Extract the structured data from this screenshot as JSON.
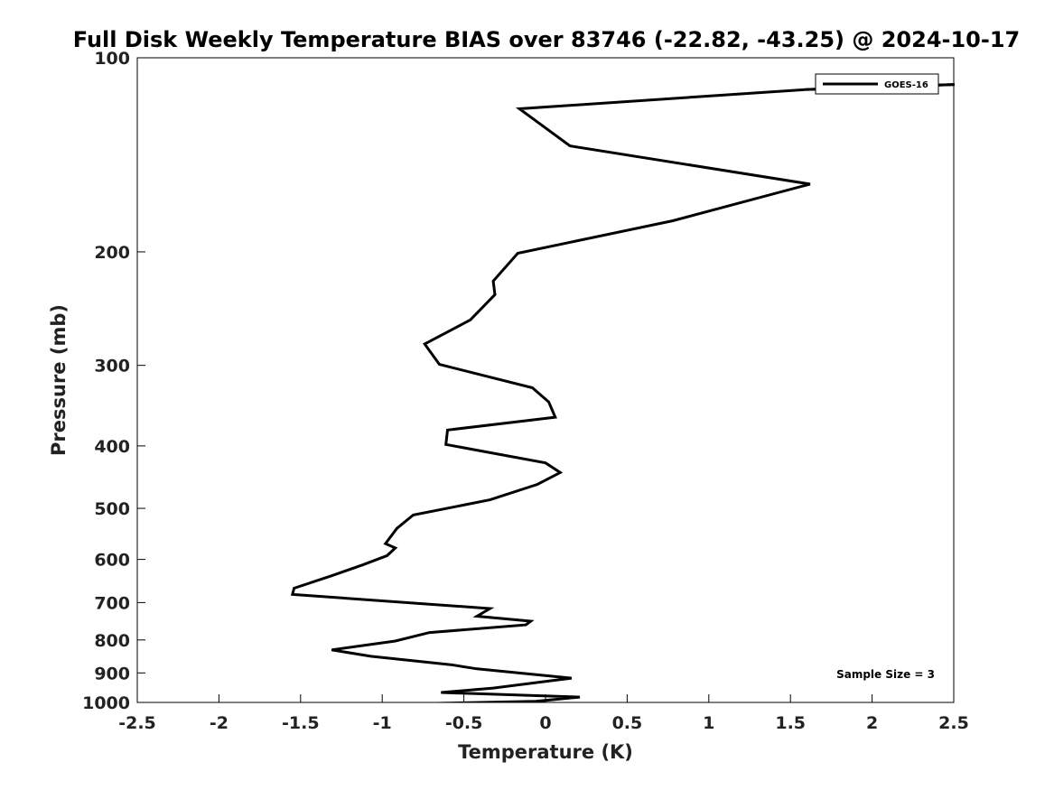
{
  "chart_data": {
    "type": "line",
    "title": "Full Disk Weekly Temperature BIAS over 83746 (-22.82, -43.25) @ 2024-10-17",
    "xlabel": "Temperature (K)",
    "ylabel": "Pressure (mb)",
    "xlim": [
      -2.5,
      2.5
    ],
    "ylim": [
      100,
      1000
    ],
    "y_scale": "log",
    "y_reversed": true,
    "x_ticks": [
      -2.5,
      -2,
      -1.5,
      -1,
      -0.5,
      0,
      0.5,
      1,
      1.5,
      2,
      2.5
    ],
    "x_tick_labels": [
      "-2.5",
      "-2",
      "-1.5",
      "-1",
      "-0.5",
      "0",
      "0.5",
      "1",
      "1.5",
      "2",
      "2.5"
    ],
    "y_ticks": [
      100,
      200,
      300,
      400,
      500,
      600,
      700,
      800,
      900,
      1000
    ],
    "y_tick_labels": [
      "100",
      "200",
      "300",
      "400",
      "500",
      "600",
      "700",
      "800",
      "900",
      "1000"
    ],
    "grid": false,
    "legend_position": "top-right",
    "series": [
      {
        "name": "GOES-16",
        "color": "#000000",
        "x": [
          2.5,
          1.6,
          -0.16,
          0.15,
          1.62,
          0.78,
          -0.17,
          -0.32,
          -0.31,
          -0.46,
          -0.74,
          -0.65,
          -0.08,
          0.02,
          0.06,
          -0.6,
          -0.61,
          0.0,
          0.09,
          -0.05,
          -0.34,
          -0.81,
          -0.91,
          -0.98,
          -0.92,
          -0.97,
          -1.12,
          -1.31,
          -1.54,
          -1.55,
          -0.34,
          -0.42,
          -0.09,
          -0.12,
          -0.71,
          -0.92,
          -1.31,
          -1.07,
          -0.58,
          -0.42,
          0.16,
          0.0,
          -0.32,
          -0.64,
          0.21,
          -0.06,
          -1.34
        ],
        "y": [
          110,
          112,
          120,
          137,
          157,
          179,
          201,
          222,
          233,
          255,
          278,
          299,
          325,
          342,
          361,
          378,
          398,
          425,
          440,
          459,
          485,
          512,
          537,
          567,
          576,
          592,
          612,
          636,
          665,
          680,
          715,
          735,
          748,
          758,
          779,
          803,
          829,
          848,
          874,
          887,
          917,
          928,
          950,
          965,
          981,
          996,
          1011
        ]
      }
    ],
    "annotations": [
      {
        "text": "Sample Size = 3",
        "position": "bottom-right"
      }
    ]
  }
}
